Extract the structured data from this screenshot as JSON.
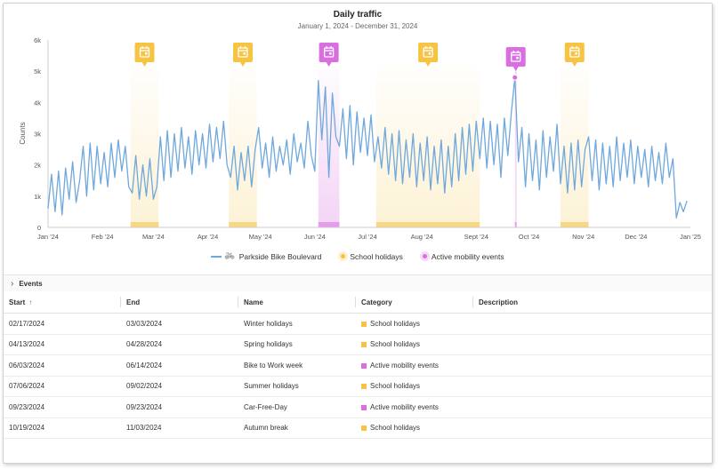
{
  "chart": {
    "title": "Daily traffic",
    "subtitle": "January 1, 2024 - December 31, 2024",
    "ylabel": "Counts"
  },
  "legend": {
    "series": "Parkside Bike Boulevard",
    "school": "School holidays",
    "mobility": "Active mobility events"
  },
  "colors": {
    "line": "#6fa8dc",
    "school": "#f6c342",
    "mobility": "#d86ee0"
  },
  "events_panel": {
    "label": "Events"
  },
  "table": {
    "headers": {
      "start": "Start",
      "end": "End",
      "name": "Name",
      "category": "Category",
      "description": "Description"
    },
    "rows": [
      {
        "start": "02/17/2024",
        "end": "03/03/2024",
        "name": "Winter holidays",
        "category": "School holidays",
        "type": "school"
      },
      {
        "start": "04/13/2024",
        "end": "04/28/2024",
        "name": "Spring holidays",
        "category": "School holidays",
        "type": "school"
      },
      {
        "start": "06/03/2024",
        "end": "06/14/2024",
        "name": "Bike to Work week",
        "category": "Active mobility events",
        "type": "mobility"
      },
      {
        "start": "07/06/2024",
        "end": "09/02/2024",
        "name": "Summer holidays",
        "category": "School holidays",
        "type": "school"
      },
      {
        "start": "09/23/2024",
        "end": "09/23/2024",
        "name": "Car-Free-Day",
        "category": "Active mobility events",
        "type": "mobility"
      },
      {
        "start": "10/19/2024",
        "end": "11/03/2024",
        "name": "Autumn break",
        "category": "School holidays",
        "type": "school"
      }
    ]
  },
  "chart_data": {
    "type": "line",
    "x_range": [
      "2024-01-01",
      "2025-01-01"
    ],
    "ylim": [
      0,
      6000
    ],
    "y_ticks": [
      "0",
      "1k",
      "2k",
      "3k",
      "4k",
      "5k",
      "6k"
    ],
    "x_ticks": [
      {
        "date": "2024-01-01",
        "label": "Jan '24"
      },
      {
        "date": "2024-02-01",
        "label": "Feb '24"
      },
      {
        "date": "2024-03-01",
        "label": "Mar '24"
      },
      {
        "date": "2024-04-01",
        "label": "Apr '24"
      },
      {
        "date": "2024-05-01",
        "label": "May '24"
      },
      {
        "date": "2024-06-01",
        "label": "Jun '24"
      },
      {
        "date": "2024-07-01",
        "label": "Jul '24"
      },
      {
        "date": "2024-08-01",
        "label": "Aug '24"
      },
      {
        "date": "2024-09-01",
        "label": "Sept '24"
      },
      {
        "date": "2024-10-01",
        "label": "Oct '24"
      },
      {
        "date": "2024-11-01",
        "label": "Nov '24"
      },
      {
        "date": "2024-12-01",
        "label": "Dec '24"
      },
      {
        "date": "2025-01-01",
        "label": "Jan '25"
      }
    ],
    "grid": false,
    "legend_position": "bottom",
    "bands": [
      {
        "start": "2024-02-17",
        "end": "2024-03-03",
        "type": "school"
      },
      {
        "start": "2024-04-13",
        "end": "2024-04-28",
        "type": "school"
      },
      {
        "start": "2024-06-03",
        "end": "2024-06-14",
        "type": "mobility"
      },
      {
        "start": "2024-07-06",
        "end": "2024-09-02",
        "type": "school"
      },
      {
        "start": "2024-09-23",
        "end": "2024-09-23",
        "type": "mobility"
      },
      {
        "start": "2024-10-19",
        "end": "2024-11-03",
        "type": "school"
      }
    ],
    "highlight_point": {
      "date": "2024-09-23",
      "value": 4800
    },
    "series": [
      {
        "name": "Parkside Bike Boulevard",
        "points": [
          [
            "2024-01-01",
            600
          ],
          [
            "2024-01-03",
            1700
          ],
          [
            "2024-01-05",
            500
          ],
          [
            "2024-01-07",
            1800
          ],
          [
            "2024-01-09",
            400
          ],
          [
            "2024-01-11",
            1900
          ],
          [
            "2024-01-13",
            900
          ],
          [
            "2024-01-15",
            2100
          ],
          [
            "2024-01-17",
            800
          ],
          [
            "2024-01-19",
            1500
          ],
          [
            "2024-01-21",
            2600
          ],
          [
            "2024-01-23",
            1000
          ],
          [
            "2024-01-25",
            2700
          ],
          [
            "2024-01-27",
            1200
          ],
          [
            "2024-01-29",
            2600
          ],
          [
            "2024-01-31",
            1400
          ],
          [
            "2024-02-02",
            2400
          ],
          [
            "2024-02-04",
            1300
          ],
          [
            "2024-02-06",
            2700
          ],
          [
            "2024-02-08",
            1600
          ],
          [
            "2024-02-10",
            2800
          ],
          [
            "2024-02-12",
            1800
          ],
          [
            "2024-02-14",
            2600
          ],
          [
            "2024-02-16",
            1300
          ],
          [
            "2024-02-18",
            1100
          ],
          [
            "2024-02-20",
            2300
          ],
          [
            "2024-02-22",
            900
          ],
          [
            "2024-02-24",
            2000
          ],
          [
            "2024-02-26",
            1000
          ],
          [
            "2024-02-28",
            2200
          ],
          [
            "2024-03-01",
            900
          ],
          [
            "2024-03-03",
            1300
          ],
          [
            "2024-03-05",
            2900
          ],
          [
            "2024-03-07",
            1500
          ],
          [
            "2024-03-09",
            3100
          ],
          [
            "2024-03-11",
            1600
          ],
          [
            "2024-03-13",
            3000
          ],
          [
            "2024-03-15",
            1800
          ],
          [
            "2024-03-17",
            3200
          ],
          [
            "2024-03-19",
            1900
          ],
          [
            "2024-03-21",
            2900
          ],
          [
            "2024-03-23",
            1700
          ],
          [
            "2024-03-25",
            3100
          ],
          [
            "2024-03-27",
            2000
          ],
          [
            "2024-03-29",
            3000
          ],
          [
            "2024-03-31",
            1900
          ],
          [
            "2024-04-02",
            3300
          ],
          [
            "2024-04-04",
            2100
          ],
          [
            "2024-04-06",
            3200
          ],
          [
            "2024-04-08",
            2200
          ],
          [
            "2024-04-10",
            3400
          ],
          [
            "2024-04-12",
            2000
          ],
          [
            "2024-04-14",
            1600
          ],
          [
            "2024-04-16",
            2600
          ],
          [
            "2024-04-18",
            1200
          ],
          [
            "2024-04-20",
            2400
          ],
          [
            "2024-04-22",
            1500
          ],
          [
            "2024-04-24",
            2600
          ],
          [
            "2024-04-26",
            1300
          ],
          [
            "2024-04-28",
            2500
          ],
          [
            "2024-04-30",
            3200
          ],
          [
            "2024-05-02",
            1900
          ],
          [
            "2024-05-04",
            2700
          ],
          [
            "2024-05-06",
            1600
          ],
          [
            "2024-05-08",
            2900
          ],
          [
            "2024-05-10",
            1800
          ],
          [
            "2024-05-12",
            2600
          ],
          [
            "2024-05-14",
            2000
          ],
          [
            "2024-05-16",
            2800
          ],
          [
            "2024-05-18",
            1700
          ],
          [
            "2024-05-20",
            3000
          ],
          [
            "2024-05-22",
            2100
          ],
          [
            "2024-05-24",
            2700
          ],
          [
            "2024-05-26",
            1900
          ],
          [
            "2024-05-28",
            3400
          ],
          [
            "2024-05-30",
            2300
          ],
          [
            "2024-06-01",
            1800
          ],
          [
            "2024-06-03",
            4700
          ],
          [
            "2024-06-05",
            2800
          ],
          [
            "2024-06-07",
            4500
          ],
          [
            "2024-06-09",
            1600
          ],
          [
            "2024-06-11",
            4300
          ],
          [
            "2024-06-13",
            2900
          ],
          [
            "2024-06-15",
            2600
          ],
          [
            "2024-06-17",
            3800
          ],
          [
            "2024-06-19",
            2200
          ],
          [
            "2024-06-21",
            3900
          ],
          [
            "2024-06-23",
            2000
          ],
          [
            "2024-06-25",
            3700
          ],
          [
            "2024-06-27",
            2400
          ],
          [
            "2024-06-29",
            3500
          ],
          [
            "2024-07-01",
            2300
          ],
          [
            "2024-07-03",
            3600
          ],
          [
            "2024-07-05",
            2100
          ],
          [
            "2024-07-07",
            2900
          ],
          [
            "2024-07-09",
            1900
          ],
          [
            "2024-07-11",
            3200
          ],
          [
            "2024-07-13",
            1700
          ],
          [
            "2024-07-15",
            3000
          ],
          [
            "2024-07-17",
            1500
          ],
          [
            "2024-07-19",
            3100
          ],
          [
            "2024-07-21",
            1400
          ],
          [
            "2024-07-23",
            2800
          ],
          [
            "2024-07-25",
            1600
          ],
          [
            "2024-07-27",
            3000
          ],
          [
            "2024-07-29",
            1300
          ],
          [
            "2024-07-31",
            2700
          ],
          [
            "2024-08-02",
            1500
          ],
          [
            "2024-08-04",
            2900
          ],
          [
            "2024-08-06",
            1200
          ],
          [
            "2024-08-08",
            2600
          ],
          [
            "2024-08-10",
            1400
          ],
          [
            "2024-08-12",
            2800
          ],
          [
            "2024-08-14",
            1100
          ],
          [
            "2024-08-16",
            2600
          ],
          [
            "2024-08-18",
            1300
          ],
          [
            "2024-08-20",
            3000
          ],
          [
            "2024-08-22",
            1500
          ],
          [
            "2024-08-24",
            3200
          ],
          [
            "2024-08-26",
            1700
          ],
          [
            "2024-08-28",
            3300
          ],
          [
            "2024-08-30",
            1800
          ],
          [
            "2024-09-01",
            3400
          ],
          [
            "2024-09-03",
            2200
          ],
          [
            "2024-09-05",
            3500
          ],
          [
            "2024-09-07",
            1900
          ],
          [
            "2024-09-09",
            3400
          ],
          [
            "2024-09-11",
            2000
          ],
          [
            "2024-09-13",
            3300
          ],
          [
            "2024-09-15",
            1600
          ],
          [
            "2024-09-17",
            3500
          ],
          [
            "2024-09-19",
            2300
          ],
          [
            "2024-09-21",
            3700
          ],
          [
            "2024-09-23",
            4800
          ],
          [
            "2024-09-25",
            2100
          ],
          [
            "2024-09-27",
            3200
          ],
          [
            "2024-09-29",
            1300
          ],
          [
            "2024-10-01",
            3000
          ],
          [
            "2024-10-03",
            1500
          ],
          [
            "2024-10-05",
            2800
          ],
          [
            "2024-10-07",
            1200
          ],
          [
            "2024-10-09",
            3100
          ],
          [
            "2024-10-11",
            1600
          ],
          [
            "2024-10-13",
            2900
          ],
          [
            "2024-10-15",
            1800
          ],
          [
            "2024-10-17",
            3300
          ],
          [
            "2024-10-19",
            1400
          ],
          [
            "2024-10-21",
            2600
          ],
          [
            "2024-10-23",
            1100
          ],
          [
            "2024-10-25",
            2700
          ],
          [
            "2024-10-27",
            1200
          ],
          [
            "2024-10-29",
            2800
          ],
          [
            "2024-10-31",
            1300
          ],
          [
            "2024-11-02",
            2500
          ],
          [
            "2024-11-04",
            2900
          ],
          [
            "2024-11-06",
            1500
          ],
          [
            "2024-11-08",
            2800
          ],
          [
            "2024-11-10",
            1200
          ],
          [
            "2024-11-12",
            2700
          ],
          [
            "2024-11-14",
            1400
          ],
          [
            "2024-11-16",
            2600
          ],
          [
            "2024-11-18",
            1300
          ],
          [
            "2024-11-20",
            2900
          ],
          [
            "2024-11-22",
            1500
          ],
          [
            "2024-11-24",
            2700
          ],
          [
            "2024-11-26",
            1600
          ],
          [
            "2024-11-28",
            2800
          ],
          [
            "2024-11-30",
            1400
          ],
          [
            "2024-12-02",
            2600
          ],
          [
            "2024-12-04",
            1600
          ],
          [
            "2024-12-06",
            2500
          ],
          [
            "2024-12-08",
            1300
          ],
          [
            "2024-12-10",
            2600
          ],
          [
            "2024-12-12",
            1500
          ],
          [
            "2024-12-14",
            2400
          ],
          [
            "2024-12-16",
            1400
          ],
          [
            "2024-12-18",
            2700
          ],
          [
            "2024-12-20",
            1600
          ],
          [
            "2024-12-22",
            2200
          ],
          [
            "2024-12-24",
            300
          ],
          [
            "2024-12-26",
            800
          ],
          [
            "2024-12-28",
            500
          ],
          [
            "2024-12-30",
            850
          ]
        ]
      }
    ]
  }
}
